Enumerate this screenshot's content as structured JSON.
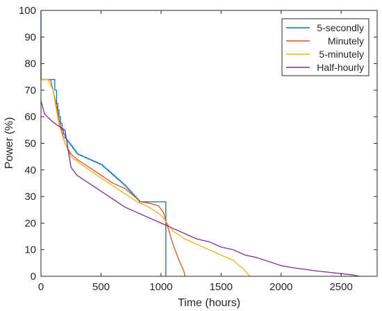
{
  "chart_data": {
    "type": "line",
    "xlabel": "Time (hours)",
    "ylabel": "Power (%)",
    "xlim": [
      0,
      2800
    ],
    "ylim": [
      0,
      100
    ],
    "xticks": [
      0,
      500,
      1000,
      1500,
      2000,
      2500
    ],
    "yticks": [
      0,
      10,
      20,
      30,
      40,
      50,
      60,
      70,
      80,
      90,
      100
    ],
    "grid": false,
    "legend_position": "top-right",
    "series": [
      {
        "name": "5-secondly",
        "color": "#0072BD",
        "step": true,
        "points": [
          [
            0,
            100
          ],
          [
            0,
            74
          ],
          [
            50,
            74
          ],
          [
            100,
            74
          ],
          [
            115,
            70
          ],
          [
            130,
            65
          ],
          [
            150,
            60
          ],
          [
            175,
            55
          ],
          [
            200,
            52
          ],
          [
            250,
            49
          ],
          [
            300,
            46
          ],
          [
            400,
            44
          ],
          [
            500,
            42
          ],
          [
            600,
            38
          ],
          [
            700,
            34
          ],
          [
            780,
            30
          ],
          [
            820,
            28
          ],
          [
            1040,
            28
          ],
          [
            1040,
            0
          ]
        ]
      },
      {
        "name": "Minutely",
        "color": "#D95319",
        "step": false,
        "points": [
          [
            0,
            90
          ],
          [
            0,
            74
          ],
          [
            80,
            74
          ],
          [
            100,
            70
          ],
          [
            130,
            64
          ],
          [
            160,
            57
          ],
          [
            200,
            50
          ],
          [
            250,
            46
          ],
          [
            300,
            44
          ],
          [
            400,
            41
          ],
          [
            500,
            38
          ],
          [
            600,
            35
          ],
          [
            700,
            33
          ],
          [
            780,
            30
          ],
          [
            830,
            28
          ],
          [
            900,
            27.5
          ],
          [
            980,
            26.5
          ],
          [
            1020,
            24
          ],
          [
            1060,
            18
          ],
          [
            1100,
            12
          ],
          [
            1150,
            6
          ],
          [
            1190,
            2
          ],
          [
            1200,
            0
          ]
        ]
      },
      {
        "name": "5-minutely",
        "color": "#EDB120",
        "step": false,
        "points": [
          [
            0,
            74
          ],
          [
            60,
            74
          ],
          [
            100,
            70
          ],
          [
            150,
            57
          ],
          [
            200,
            50
          ],
          [
            250,
            45
          ],
          [
            400,
            40
          ],
          [
            500,
            37
          ],
          [
            600,
            34
          ],
          [
            700,
            31
          ],
          [
            800,
            28
          ],
          [
            900,
            26
          ],
          [
            1000,
            23
          ],
          [
            1100,
            17
          ],
          [
            1200,
            14
          ],
          [
            1300,
            12
          ],
          [
            1400,
            10
          ],
          [
            1500,
            8
          ],
          [
            1600,
            6
          ],
          [
            1680,
            3
          ],
          [
            1740,
            0
          ]
        ]
      },
      {
        "name": "Half-hourly",
        "color": "#7E2F8E",
        "step": false,
        "points": [
          [
            0,
            66
          ],
          [
            30,
            61
          ],
          [
            100,
            58
          ],
          [
            130,
            57
          ],
          [
            200,
            55
          ],
          [
            250,
            41
          ],
          [
            300,
            38
          ],
          [
            400,
            35
          ],
          [
            500,
            32
          ],
          [
            600,
            29
          ],
          [
            700,
            26
          ],
          [
            800,
            24
          ],
          [
            900,
            22
          ],
          [
            1000,
            20
          ],
          [
            1100,
            18
          ],
          [
            1200,
            16
          ],
          [
            1300,
            14
          ],
          [
            1400,
            13
          ],
          [
            1500,
            11
          ],
          [
            1600,
            10
          ],
          [
            1700,
            8
          ],
          [
            1800,
            7
          ],
          [
            1900,
            5.5
          ],
          [
            2000,
            4
          ],
          [
            2100,
            3.2
          ],
          [
            2200,
            2.6
          ],
          [
            2300,
            2
          ],
          [
            2400,
            1.5
          ],
          [
            2500,
            1
          ],
          [
            2600,
            0.5
          ],
          [
            2650,
            0
          ]
        ]
      }
    ]
  }
}
